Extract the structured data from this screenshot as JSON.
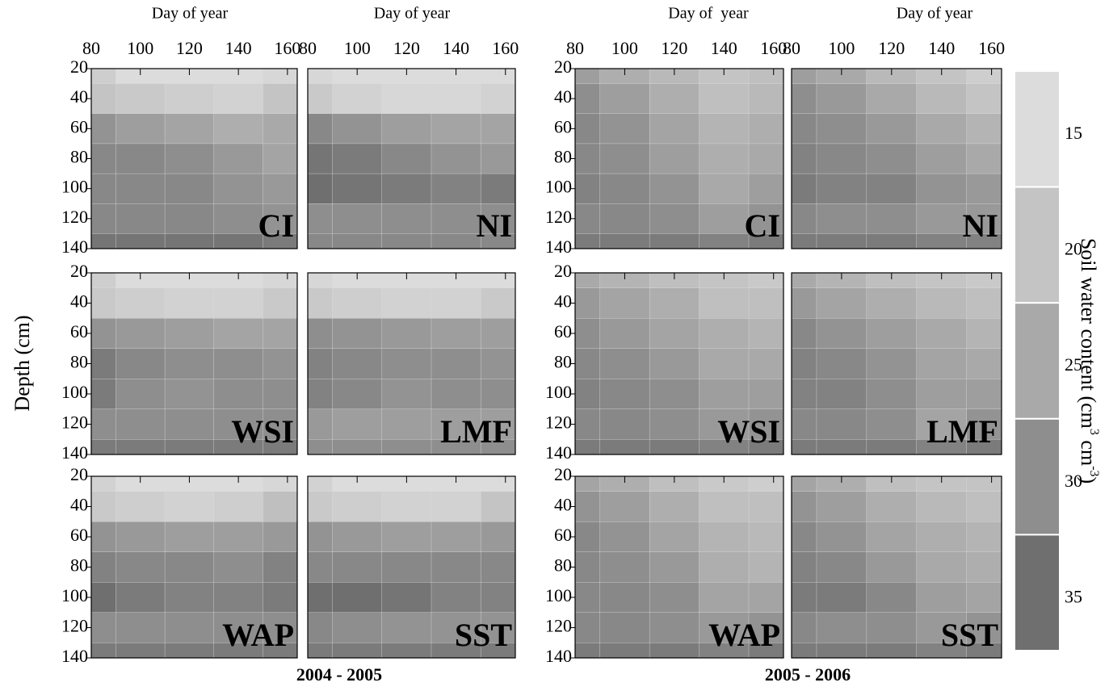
{
  "chart_data": {
    "type": "contour",
    "x_labels": [
      "Day of year",
      "Day of year",
      "Day of  year",
      "Day of year"
    ],
    "y_label": "Depth (cm)",
    "groups": [
      "2004 - 2005",
      "2005 - 2006"
    ],
    "xlim": [
      80,
      164
    ],
    "ylim": [
      20,
      140
    ],
    "xticks": [
      80,
      100,
      120,
      140,
      160
    ],
    "yticks": [
      20,
      40,
      60,
      80,
      100,
      120,
      140
    ],
    "days": [
      80,
      100,
      120,
      140,
      160
    ],
    "depths": [
      20,
      40,
      60,
      80,
      100,
      120,
      140
    ],
    "panels": [
      {
        "name": "CI",
        "group": 0,
        "z": [
          [
            18,
            15,
            13,
            13,
            16
          ],
          [
            20,
            19,
            18,
            17,
            20
          ],
          [
            29,
            27,
            26,
            24,
            25
          ],
          [
            31,
            31,
            30,
            28,
            26
          ],
          [
            31,
            31,
            31,
            29,
            28
          ],
          [
            31,
            31,
            31,
            30,
            29
          ],
          [
            34,
            34,
            34,
            34,
            33
          ]
        ]
      },
      {
        "name": "NI",
        "group": 0,
        "z": [
          [
            16,
            14,
            13,
            13,
            14
          ],
          [
            19,
            17,
            16,
            16,
            17
          ],
          [
            31,
            29,
            27,
            26,
            26
          ],
          [
            34,
            33,
            31,
            29,
            28
          ],
          [
            36,
            34,
            33,
            32,
            33
          ],
          [
            30,
            30,
            30,
            30,
            30
          ],
          [
            31,
            31,
            31,
            31,
            31
          ]
        ]
      },
      {
        "name": "WSI",
        "group": 0,
        "z": [
          [
            18,
            14,
            13,
            13,
            16
          ],
          [
            19,
            18,
            17,
            17,
            19
          ],
          [
            29,
            28,
            27,
            26,
            26
          ],
          [
            33,
            31,
            30,
            30,
            29
          ],
          [
            33,
            30,
            29,
            30,
            30
          ],
          [
            30,
            30,
            30,
            30,
            30
          ],
          [
            33,
            33,
            33,
            33,
            33
          ]
        ]
      },
      {
        "name": "LMF",
        "group": 0,
        "z": [
          [
            16,
            14,
            13,
            13,
            15
          ],
          [
            19,
            18,
            17,
            17,
            19
          ],
          [
            30,
            29,
            28,
            27,
            27
          ],
          [
            32,
            31,
            30,
            30,
            29
          ],
          [
            32,
            31,
            29,
            30,
            30
          ],
          [
            28,
            27,
            27,
            27,
            27
          ],
          [
            30,
            30,
            30,
            30,
            30
          ]
        ]
      },
      {
        "name": "WAP",
        "group": 0,
        "z": [
          [
            17,
            14,
            13,
            13,
            16
          ],
          [
            19,
            18,
            17,
            18,
            21
          ],
          [
            29,
            28,
            27,
            27,
            28
          ],
          [
            32,
            31,
            31,
            30,
            32
          ],
          [
            35,
            33,
            32,
            32,
            33
          ],
          [
            30,
            30,
            30,
            30,
            30
          ],
          [
            33,
            33,
            33,
            33,
            33
          ]
        ]
      },
      {
        "name": "SST",
        "group": 0,
        "z": [
          [
            17,
            14,
            13,
            13,
            15
          ],
          [
            19,
            18,
            17,
            17,
            20
          ],
          [
            29,
            28,
            27,
            27,
            28
          ],
          [
            31,
            31,
            31,
            31,
            31
          ],
          [
            35,
            35,
            34,
            32,
            32
          ],
          [
            31,
            30,
            29,
            29,
            29
          ],
          [
            33,
            33,
            33,
            33,
            33
          ]
        ]
      },
      {
        "name": "CI",
        "group": 1,
        "z": [
          [
            27,
            24,
            22,
            20,
            21
          ],
          [
            30,
            27,
            24,
            21,
            22
          ],
          [
            31,
            29,
            26,
            23,
            24
          ],
          [
            31,
            30,
            27,
            24,
            25
          ],
          [
            32,
            31,
            29,
            25,
            27
          ],
          [
            31,
            31,
            30,
            27,
            29
          ],
          [
            33,
            33,
            33,
            32,
            33
          ]
        ]
      },
      {
        "name": "NI",
        "group": 1,
        "z": [
          [
            27,
            25,
            22,
            20,
            18
          ],
          [
            30,
            28,
            25,
            22,
            20
          ],
          [
            31,
            30,
            28,
            25,
            23
          ],
          [
            32,
            31,
            30,
            27,
            25
          ],
          [
            33,
            32,
            32,
            29,
            28
          ],
          [
            31,
            30,
            30,
            28,
            28
          ],
          [
            33,
            33,
            33,
            32,
            32
          ]
        ]
      },
      {
        "name": "WSI",
        "group": 1,
        "z": [
          [
            25,
            23,
            21,
            20,
            19
          ],
          [
            28,
            26,
            24,
            21,
            21
          ],
          [
            30,
            28,
            26,
            24,
            23
          ],
          [
            31,
            30,
            28,
            25,
            25
          ],
          [
            32,
            31,
            30,
            27,
            27
          ],
          [
            31,
            31,
            30,
            28,
            29
          ],
          [
            33,
            33,
            33,
            32,
            33
          ]
        ]
      },
      {
        "name": "LMF",
        "group": 1,
        "z": [
          [
            25,
            23,
            21,
            20,
            19
          ],
          [
            28,
            26,
            24,
            22,
            21
          ],
          [
            31,
            29,
            27,
            25,
            23
          ],
          [
            32,
            31,
            29,
            26,
            25
          ],
          [
            32,
            32,
            30,
            27,
            27
          ],
          [
            31,
            31,
            30,
            26,
            29
          ],
          [
            33,
            33,
            33,
            32,
            33
          ]
        ]
      },
      {
        "name": "WAP",
        "group": 1,
        "z": [
          [
            26,
            24,
            21,
            19,
            18
          ],
          [
            29,
            27,
            24,
            21,
            21
          ],
          [
            31,
            29,
            26,
            23,
            22
          ],
          [
            31,
            30,
            28,
            24,
            23
          ],
          [
            31,
            31,
            30,
            26,
            26
          ],
          [
            31,
            31,
            30,
            28,
            29
          ],
          [
            33,
            33,
            33,
            32,
            33
          ]
        ]
      },
      {
        "name": "SST",
        "group": 1,
        "z": [
          [
            26,
            24,
            21,
            20,
            20
          ],
          [
            29,
            27,
            24,
            22,
            21
          ],
          [
            31,
            29,
            26,
            24,
            23
          ],
          [
            32,
            31,
            28,
            25,
            24
          ],
          [
            33,
            33,
            31,
            27,
            26
          ],
          [
            31,
            30,
            30,
            28,
            29
          ],
          [
            33,
            33,
            33,
            32,
            33
          ]
        ]
      }
    ],
    "colorbar": {
      "label_parts": [
        "Soil water content (cm",
        "3",
        " cm",
        "-3",
        ")"
      ],
      "levels": [
        15,
        20,
        25,
        30,
        35
      ],
      "colors": [
        "#dcdcdc",
        "#c4c4c4",
        "#a9a9a9",
        "#8e8e8e",
        "#6f6f6f"
      ]
    }
  }
}
